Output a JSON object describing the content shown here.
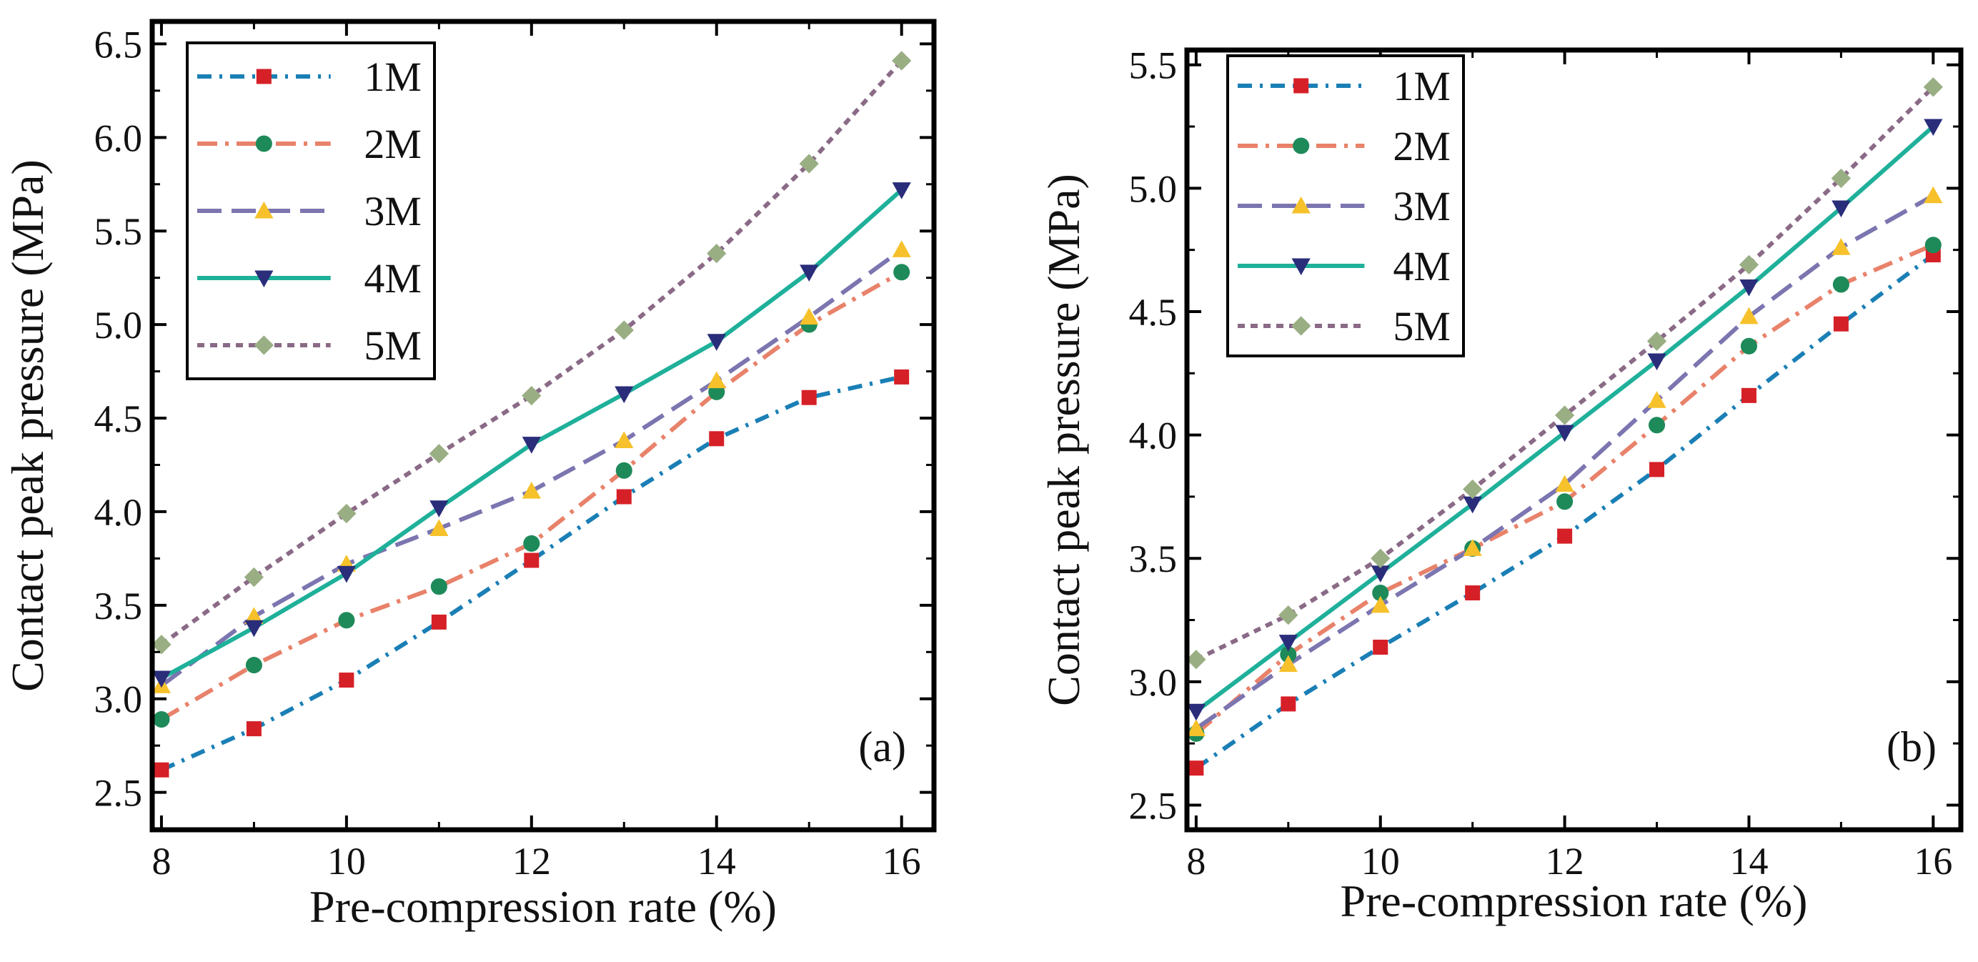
{
  "styles": {
    "1M": {
      "color": "#1a7fb5",
      "marker": "square",
      "markerColor": "#d62027",
      "dash": "dashdot"
    },
    "2M": {
      "color": "#e8826a",
      "marker": "circle",
      "markerColor": "#1e8a5a",
      "dash": "longdashdot"
    },
    "3M": {
      "color": "#7b75b0",
      "marker": "triangle-up",
      "markerColor": "#f6c12a",
      "dash": "longdash"
    },
    "4M": {
      "color": "#1fb09a",
      "marker": "triangle-down",
      "markerColor": "#2a2d7a",
      "dash": "solid"
    },
    "5M": {
      "color": "#8a6a86",
      "marker": "diamond",
      "markerColor": "#9aae84",
      "dash": "shortdash"
    }
  },
  "chart_data": [
    {
      "type": "line",
      "panel_label": "(a)",
      "xlabel": "Pre-compression rate (%)",
      "ylabel": "Contact peak pressure (MPa)",
      "xlim": [
        7.9,
        16.35
      ],
      "ylim": [
        2.3,
        6.62
      ],
      "xticks": [
        8,
        10,
        12,
        14,
        16
      ],
      "yticks": [
        2.5,
        3.0,
        3.5,
        4.0,
        4.5,
        5.0,
        5.5,
        6.0,
        6.5
      ],
      "legend_position": "top-left",
      "x": [
        8,
        9,
        10,
        11,
        12,
        13,
        14,
        15,
        16
      ],
      "series": [
        {
          "name": "1M",
          "values": [
            2.62,
            2.84,
            3.1,
            3.41,
            3.74,
            4.08,
            4.39,
            4.61,
            4.72
          ]
        },
        {
          "name": "2M",
          "values": [
            2.89,
            3.18,
            3.42,
            3.6,
            3.83,
            4.22,
            4.64,
            5.0,
            5.28
          ]
        },
        {
          "name": "3M",
          "values": [
            3.07,
            3.44,
            3.72,
            3.91,
            4.11,
            4.38,
            4.7,
            5.04,
            5.4
          ]
        },
        {
          "name": "4M",
          "values": [
            3.11,
            3.38,
            3.67,
            4.02,
            4.36,
            4.63,
            4.91,
            5.28,
            5.72
          ]
        },
        {
          "name": "5M",
          "values": [
            3.29,
            3.65,
            3.99,
            4.31,
            4.62,
            4.97,
            5.38,
            5.86,
            6.41
          ]
        }
      ]
    },
    {
      "type": "line",
      "panel_label": "(b)",
      "xlabel": "Pre-compression rate (%)",
      "ylabel": "Contact peak pressure (MPa)",
      "xlim": [
        7.9,
        16.3
      ],
      "ylim": [
        2.4,
        5.56
      ],
      "xticks": [
        8,
        10,
        12,
        14,
        16
      ],
      "yticks": [
        2.5,
        3.0,
        3.5,
        4.0,
        4.5,
        5.0,
        5.5
      ],
      "legend_position": "top-left",
      "x": [
        8,
        9,
        10,
        11,
        12,
        13,
        14,
        15,
        16
      ],
      "series": [
        {
          "name": "1M",
          "values": [
            2.65,
            2.91,
            3.14,
            3.36,
            3.59,
            3.86,
            4.16,
            4.45,
            4.73
          ]
        },
        {
          "name": "2M",
          "values": [
            2.79,
            3.11,
            3.36,
            3.54,
            3.73,
            4.04,
            4.36,
            4.61,
            4.77
          ]
        },
        {
          "name": "3M",
          "values": [
            2.81,
            3.07,
            3.31,
            3.54,
            3.8,
            4.14,
            4.48,
            4.76,
            4.97
          ]
        },
        {
          "name": "4M",
          "values": [
            2.88,
            3.16,
            3.44,
            3.72,
            4.01,
            4.3,
            4.6,
            4.92,
            5.25
          ]
        },
        {
          "name": "5M",
          "values": [
            3.09,
            3.27,
            3.5,
            3.78,
            4.08,
            4.38,
            4.69,
            5.04,
            5.41
          ]
        }
      ]
    }
  ]
}
